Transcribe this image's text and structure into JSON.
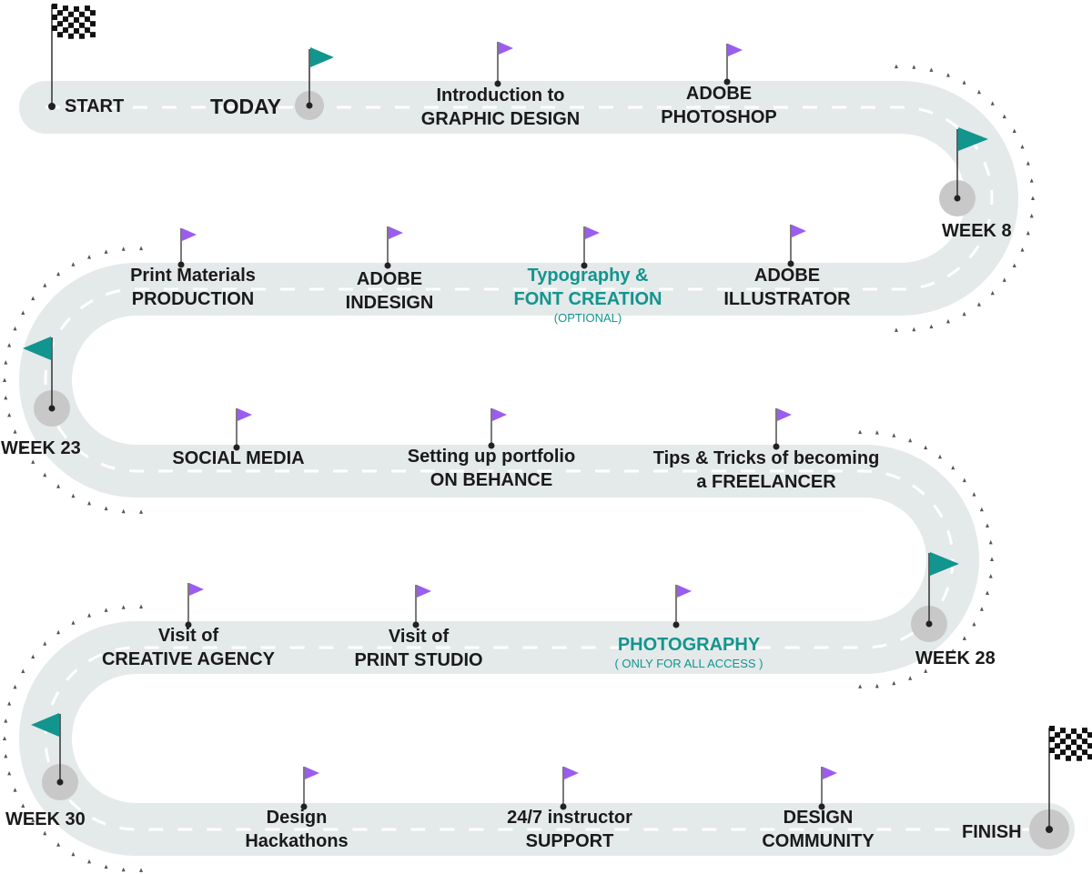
{
  "colors": {
    "road": "#e4e9ea",
    "road_dash": "#ffffff",
    "teal": "#12958e",
    "purple_flag": "#9b5cf0",
    "node": "#c8c8c8",
    "text": "#1a1a1a"
  },
  "start": {
    "label": "START"
  },
  "today": {
    "label": "TODAY"
  },
  "finish": {
    "label": "FINISH"
  },
  "weeks": [
    {
      "label": "WEEK 8"
    },
    {
      "label": "WEEK 23"
    },
    {
      "label": "WEEK 28"
    },
    {
      "label": "WEEK 30"
    }
  ],
  "milestones": [
    {
      "line1": "Introduction to",
      "line2": "GRAPHIC DESIGN"
    },
    {
      "line1": "ADOBE",
      "line2": "PHOTOSHOP"
    },
    {
      "line1": "Print Materials",
      "line2": "PRODUCTION"
    },
    {
      "line1": "ADOBE",
      "line2": "INDESIGN"
    },
    {
      "line1": "Typography &",
      "line2": "FONT CREATION",
      "note": "(OPTIONAL)"
    },
    {
      "line1": "ADOBE",
      "line2": "ILLUSTRATOR"
    },
    {
      "line1": "SOCIAL MEDIA"
    },
    {
      "line1": "Setting up portfolio",
      "line2": "ON BEHANCE"
    },
    {
      "line1": "Tips & Tricks of becoming",
      "line2": "a FREELANCER"
    },
    {
      "line1": "Visit of",
      "line2": "CREATIVE AGENCY"
    },
    {
      "line1": "Visit of",
      "line2": "PRINT STUDIO"
    },
    {
      "line1": "PHOTOGRAPHY",
      "note": "( ONLY FOR ALL ACCESS )"
    },
    {
      "line1": "Design",
      "line2": "Hackathons"
    },
    {
      "line1": "24/7 instructor",
      "line2": "SUPPORT"
    },
    {
      "line1": "DESIGN",
      "line2": "COMMUNITY"
    }
  ]
}
